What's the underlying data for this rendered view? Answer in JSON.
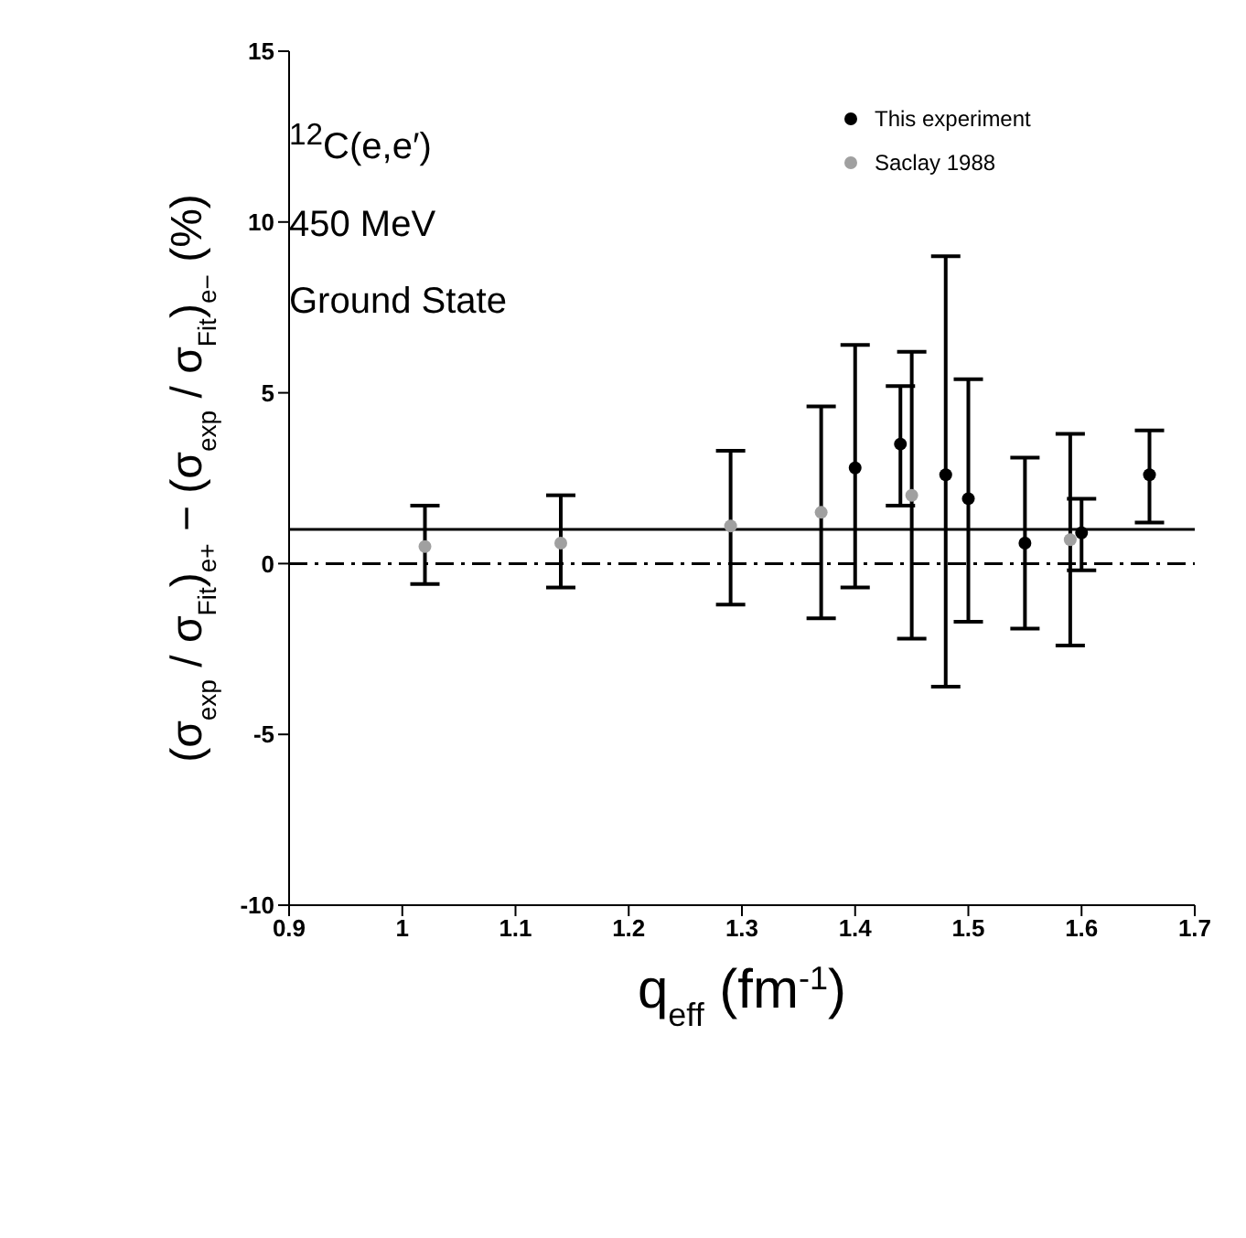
{
  "chart_data": {
    "type": "scatter",
    "xlabel": "q$_{eff}$ (fm$^{-1}$)",
    "ylabel": "(σ$_{exp}$ / σ$_{Fit}$)$_{e+}$ − (σ$_{exp}$ / σ$_{Fit}$)$_{e−}$ (%)",
    "annotations": [
      "$^{12}$C(e,e′)",
      "450 MeV",
      "Ground State"
    ],
    "series": [
      {
        "name": "This experiment",
        "color": "#000000",
        "x": [
          1.4,
          1.44,
          1.48,
          1.5,
          1.55,
          1.6,
          1.66
        ],
        "values": [
          2.8,
          3.5,
          2.6,
          1.9,
          0.6,
          0.9,
          2.6
        ],
        "errors": [
          [
            -0.7,
            6.4
          ],
          [
            1.7,
            5.2
          ],
          [
            -3.6,
            9.0
          ],
          [
            -1.7,
            5.4
          ],
          [
            -1.9,
            3.1
          ],
          [
            -0.2,
            1.9
          ],
          [
            1.2,
            3.9
          ]
        ]
      },
      {
        "name": "Saclay 1988",
        "color": "#a0a0a0",
        "x": [
          1.02,
          1.14,
          1.29,
          1.37,
          1.45,
          1.59
        ],
        "values": [
          0.5,
          0.6,
          1.1,
          1.5,
          2.0,
          0.7
        ],
        "errors": [
          [
            -0.6,
            1.7
          ],
          [
            -0.7,
            2.0
          ],
          [
            -1.2,
            3.3
          ],
          [
            -1.6,
            4.6
          ],
          [
            -2.2,
            6.2
          ],
          [
            -2.4,
            3.8
          ]
        ]
      }
    ],
    "xlim": [
      0.9,
      1.7
    ],
    "xticks": [
      0.9,
      1,
      1.1,
      1.2,
      1.3,
      1.4,
      1.5,
      1.6,
      1.7
    ],
    "ylim": [
      -10,
      15
    ],
    "yticks": [
      -10,
      -5,
      0,
      5,
      10,
      15
    ],
    "ref_lines": [
      {
        "axis": "y",
        "value": 0,
        "color": "#000000",
        "line_style": "dashed"
      },
      {
        "axis": "y",
        "value": 1,
        "color": "#000000",
        "line_style": "solid"
      }
    ],
    "marker": "circle",
    "grid": false,
    "legend": "top right"
  }
}
